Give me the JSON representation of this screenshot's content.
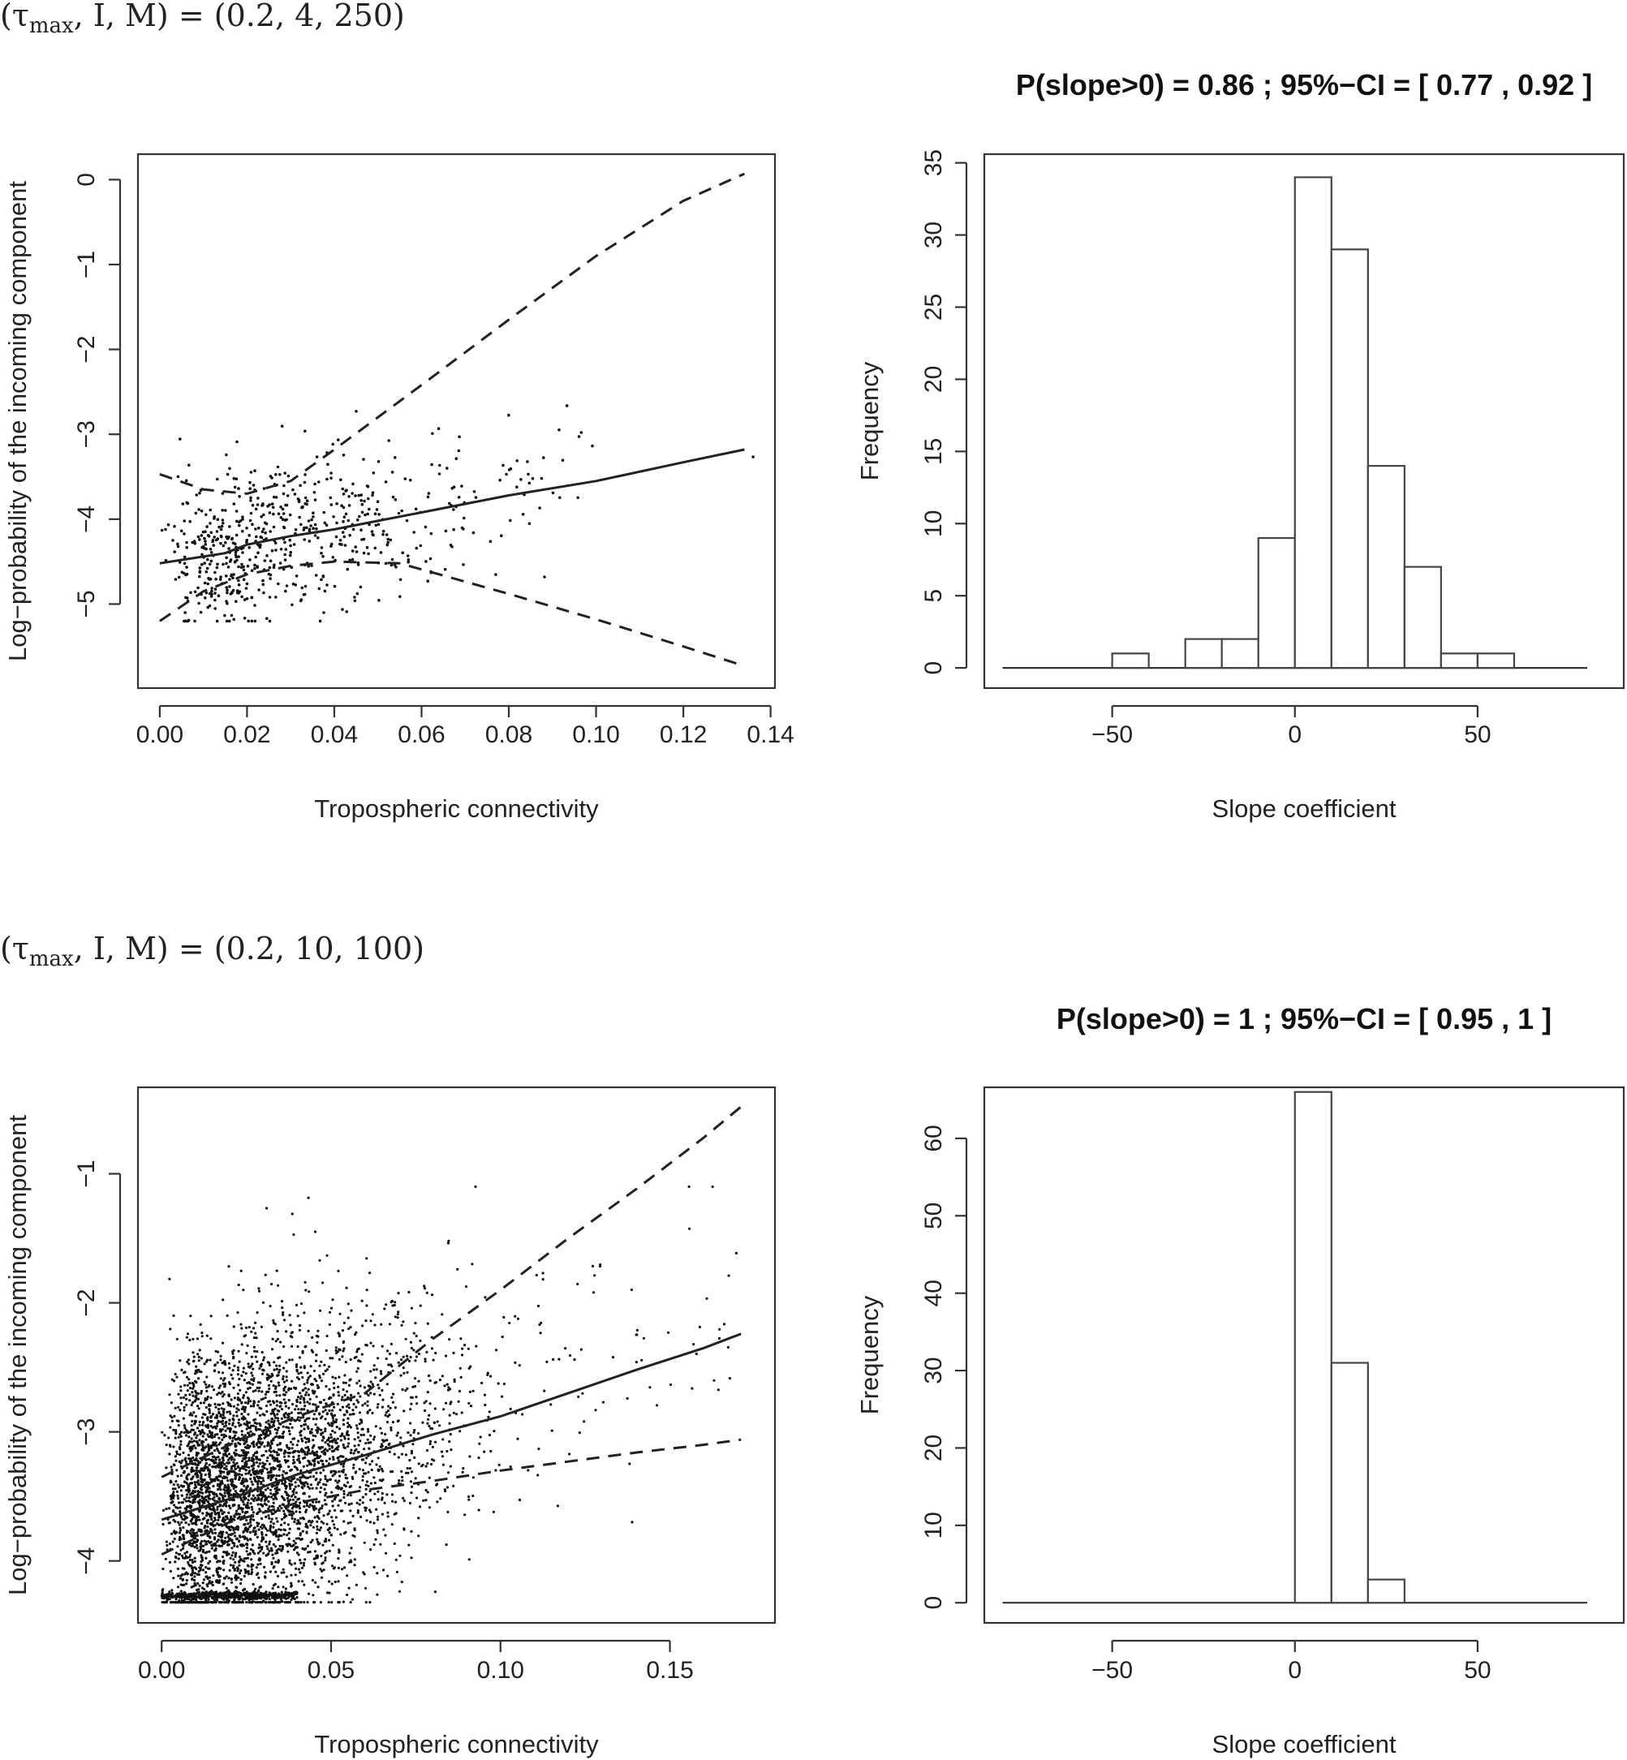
{
  "chart_data": [
    {
      "type": "scatter",
      "panel_label": "(τ_max, I, M) = (0.2, 4, 250)",
      "panel_label_parts": {
        "open": "(τ",
        "sub": "max",
        "rest": ", I, M) = (0.2, 4, 250)"
      },
      "title": "",
      "xlabel": "Tropospheric connectivity",
      "ylabel": "Log−probability of the incoming component",
      "xlim": [
        -0.005,
        0.141
      ],
      "ylim": [
        -5.99,
        0.3
      ],
      "xticks": [
        0.0,
        0.02,
        0.04,
        0.06,
        0.08,
        0.1,
        0.12,
        0.14
      ],
      "xtick_labels": [
        "0.00",
        "0.02",
        "0.04",
        "0.06",
        "0.08",
        "0.10",
        "0.12",
        "0.14"
      ],
      "yticks": [
        0,
        -1,
        -2,
        -3,
        -4,
        -5
      ],
      "ytick_labels": [
        "0",
        "−1",
        "−2",
        "−3",
        "−4",
        "−5"
      ],
      "grid": false,
      "points_summary": {
        "count": 650,
        "x_range": [
          0.0,
          0.136
        ],
        "y_range": [
          -5.2,
          -2.1
        ]
      },
      "series": [
        {
          "style": "solid",
          "x": [
            0.0,
            0.015,
            0.02,
            0.03,
            0.04,
            0.05,
            0.06,
            0.08,
            0.1,
            0.12,
            0.134
          ],
          "y": [
            -4.52,
            -4.4,
            -4.3,
            -4.2,
            -4.12,
            -4.02,
            -3.92,
            -3.72,
            -3.55,
            -3.33,
            -3.18
          ]
        },
        {
          "style": "dashed",
          "x": [
            0.0,
            0.01,
            0.02,
            0.03,
            0.04,
            0.06,
            0.08,
            0.1,
            0.12,
            0.134
          ],
          "y": [
            -3.47,
            -3.65,
            -3.7,
            -3.55,
            -3.18,
            -2.42,
            -1.65,
            -0.9,
            -0.25,
            0.07
          ]
        },
        {
          "style": "dashed",
          "x": [
            0.0,
            0.01,
            0.02,
            0.03,
            0.04,
            0.055,
            0.08,
            0.1,
            0.12,
            0.134
          ],
          "y": [
            -5.2,
            -4.85,
            -4.65,
            -4.55,
            -4.5,
            -4.52,
            -4.88,
            -5.18,
            -5.5,
            -5.73
          ]
        }
      ]
    },
    {
      "type": "bar",
      "title": "P(slope>0) = 0.86 ; 95%−CI = [ 0.77 , 0.92 ]",
      "xlabel": "Slope coefficient",
      "ylabel": "Frequency",
      "xlim": [
        -85,
        90
      ],
      "ylim": [
        -1.4,
        35.6
      ],
      "xticks": [
        -50,
        0,
        50
      ],
      "xtick_labels": [
        "−50",
        "0",
        "50"
      ],
      "yticks": [
        0,
        5,
        10,
        15,
        20,
        25,
        30,
        35
      ],
      "ytick_labels": [
        "0",
        "5",
        "10",
        "15",
        "20",
        "25",
        "30",
        "35"
      ],
      "baseline_range": [
        -80,
        80
      ],
      "bin_edges": [
        -50,
        -40,
        -30,
        -20,
        -10,
        0,
        10,
        20,
        30,
        40,
        50,
        60
      ],
      "values": [
        1,
        0,
        2,
        2,
        9,
        34,
        29,
        14,
        7,
        1,
        1
      ],
      "grid": false
    },
    {
      "type": "scatter",
      "panel_label": "(τ_max, I, M) = (0.2, 10, 100)",
      "panel_label_parts": {
        "open": "(τ",
        "sub": "max",
        "rest": ", I, M) = (0.2, 10, 100)"
      },
      "title": "",
      "xlabel": "Tropospheric connectivity",
      "ylabel": "Log−probability of the incoming component",
      "xlim": [
        -0.007,
        0.181
      ],
      "ylim": [
        -4.48,
        -0.33
      ],
      "xticks": [
        0.0,
        0.05,
        0.1,
        0.15
      ],
      "xtick_labels": [
        "0.00",
        "0.05",
        "0.10",
        "0.15"
      ],
      "yticks": [
        -1,
        -2,
        -3,
        -4
      ],
      "ytick_labels": [
        "−1",
        "−2",
        "−3",
        "−4"
      ],
      "grid": false,
      "points_summary": {
        "count": 4700,
        "x_range": [
          0.0,
          0.175
        ],
        "y_range": [
          -4.32,
          -1.1
        ]
      },
      "series": [
        {
          "style": "solid",
          "x": [
            0.0,
            0.02,
            0.04,
            0.06,
            0.08,
            0.1,
            0.12,
            0.14,
            0.16,
            0.171
          ],
          "y": [
            -3.68,
            -3.52,
            -3.33,
            -3.18,
            -3.02,
            -2.88,
            -2.7,
            -2.52,
            -2.35,
            -2.24
          ]
        },
        {
          "style": "dashed",
          "x": [
            0.0,
            0.02,
            0.04,
            0.06,
            0.08,
            0.1,
            0.12,
            0.14,
            0.16,
            0.171
          ],
          "y": [
            -3.35,
            -3.1,
            -2.88,
            -2.7,
            -2.28,
            -1.9,
            -1.5,
            -1.12,
            -0.72,
            -0.48
          ]
        },
        {
          "style": "dashed",
          "x": [
            0.0,
            0.02,
            0.04,
            0.06,
            0.08,
            0.1,
            0.12,
            0.14,
            0.16,
            0.171
          ],
          "y": [
            -3.95,
            -3.7,
            -3.55,
            -3.45,
            -3.38,
            -3.3,
            -3.23,
            -3.16,
            -3.1,
            -3.06
          ]
        }
      ]
    },
    {
      "type": "bar",
      "title": "P(slope>0) = 1 ; 95%−CI = [ 0.95 , 1 ]",
      "xlabel": "Slope coefficient",
      "ylabel": "Frequency",
      "xlim": [
        -85,
        90
      ],
      "ylim": [
        -2.6,
        66.6
      ],
      "xticks": [
        -50,
        0,
        50
      ],
      "xtick_labels": [
        "−50",
        "0",
        "50"
      ],
      "yticks": [
        0,
        10,
        20,
        30,
        40,
        50,
        60
      ],
      "ytick_labels": [
        "0",
        "10",
        "20",
        "30",
        "40",
        "50",
        "60"
      ],
      "baseline_range": [
        -80,
        80
      ],
      "bin_edges": [
        0,
        10,
        20,
        30
      ],
      "values": [
        66,
        31,
        3
      ],
      "grid": false
    }
  ]
}
